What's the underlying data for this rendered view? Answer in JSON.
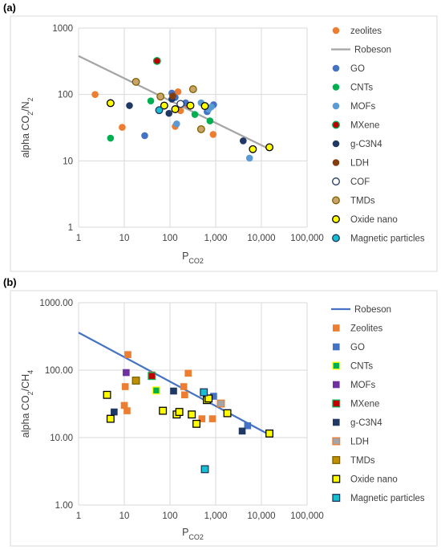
{
  "panels": [
    {
      "label": "(a)"
    },
    {
      "label": "(b)"
    }
  ],
  "chart_data": [
    {
      "type": "scatter",
      "title": "",
      "ylabel": "alpha CO2/N2",
      "xlabel": "PCO2",
      "xscale": "log",
      "yscale": "log",
      "xlim": [
        1,
        100000
      ],
      "ylim": [
        1,
        1000
      ],
      "x_tick_labels": [
        "1",
        "10",
        "100",
        "1,000",
        "10,000",
        "100,000"
      ],
      "y_tick_labels": [
        "1",
        "10",
        "100",
        "1000"
      ],
      "grid": true,
      "legend_position": "right",
      "series": [
        {
          "name": "zeolites",
          "marker": "circle",
          "color": "#ED7D31",
          "edge": "none",
          "points": [
            [
              2.3,
              100
            ],
            [
              9,
              32
            ],
            [
              130,
              33
            ],
            [
              150,
              110
            ],
            [
              170,
              57
            ],
            [
              220,
              70
            ],
            [
              880,
              25
            ]
          ]
        },
        {
          "name": "Robeson",
          "marker": "line",
          "color": "#A5A5A5",
          "points": [
            [
              1,
              380
            ],
            [
              15000,
              15
            ]
          ]
        },
        {
          "name": "GO",
          "marker": "circle",
          "color": "#4472C4",
          "edge": "none",
          "points": [
            [
              28,
              24
            ],
            [
              110,
              105
            ],
            [
              130,
              90
            ],
            [
              220,
              75
            ],
            [
              650,
              55
            ],
            [
              900,
              70
            ]
          ]
        },
        {
          "name": "CNTs",
          "marker": "circle",
          "color": "#00B050",
          "edge": "none",
          "points": [
            [
              5,
              22
            ],
            [
              38,
              80
            ],
            [
              350,
              50
            ],
            [
              750,
              40
            ]
          ]
        },
        {
          "name": "MOFs",
          "marker": "circle",
          "color": "#5B9BD5",
          "edge": "none",
          "points": [
            [
              140,
              36
            ],
            [
              480,
              75
            ],
            [
              700,
              60
            ],
            [
              800,
              65
            ],
            [
              5500,
              11
            ]
          ]
        },
        {
          "name": "MXene",
          "marker": "circle",
          "color": "#C00000",
          "edge": "#00B050",
          "points": [
            [
              52,
              320
            ]
          ]
        },
        {
          "name": "g-C3N4",
          "marker": "circle",
          "color": "#203864",
          "edge": "none",
          "points": [
            [
              13,
              68
            ],
            [
              95,
              52
            ],
            [
              110,
              85
            ],
            [
              4000,
              20
            ]
          ]
        },
        {
          "name": "LDH",
          "marker": "circle",
          "color": "#843C0C",
          "edge": "none",
          "points": [
            [
              115,
              95
            ]
          ]
        },
        {
          "name": "COF",
          "marker": "circle",
          "color": "#FFFFFF",
          "edge": "#203864",
          "points": [
            [
              170,
              72
            ]
          ]
        },
        {
          "name": "TMDs",
          "marker": "circle",
          "color": "#C9A46A",
          "edge": "#7F6000",
          "points": [
            [
              18,
              155
            ],
            [
              62,
              93
            ],
            [
              320,
              120
            ],
            [
              480,
              30
            ]
          ]
        },
        {
          "name": "Oxide nano",
          "marker": "circle",
          "color": "#FFFF00",
          "edge": "#000000",
          "points": [
            [
              5,
              74
            ],
            [
              75,
              68
            ],
            [
              130,
              60
            ],
            [
              280,
              68
            ],
            [
              580,
              67
            ],
            [
              6500,
              15
            ],
            [
              15000,
              16
            ]
          ]
        },
        {
          "name": "Magnetic particles",
          "marker": "circle",
          "color": "#17BECF",
          "edge": "#1F3864",
          "points": [
            [
              58,
              58
            ]
          ]
        }
      ]
    },
    {
      "type": "scatter",
      "title": "",
      "ylabel": "alpha CO2/CH4",
      "xlabel": "PCO2",
      "xscale": "log",
      "yscale": "log",
      "xlim": [
        1,
        100000
      ],
      "ylim": [
        1,
        1000
      ],
      "x_tick_labels": [
        "1",
        "10",
        "100",
        "1,000",
        "10,000",
        "100,000"
      ],
      "y_tick_labels": [
        "1.00",
        "10.00",
        "100.00",
        "1000.00"
      ],
      "grid": true,
      "legend_position": "right",
      "series": [
        {
          "name": "Robeson",
          "marker": "line",
          "color": "#4472C4",
          "points": [
            [
              1,
              360
            ],
            [
              15000,
              11
            ]
          ]
        },
        {
          "name": "Zeolites",
          "marker": "square",
          "color": "#ED7D31",
          "edge": "none",
          "points": [
            [
              10,
              30
            ],
            [
              10.5,
              57
            ],
            [
              11.5,
              25
            ],
            [
              12,
              170
            ],
            [
              40,
              85
            ],
            [
              200,
              57
            ],
            [
              210,
              43
            ],
            [
              250,
              90
            ],
            [
              500,
              19
            ],
            [
              850,
              19
            ]
          ]
        },
        {
          "name": "GO",
          "marker": "square",
          "color": "#4472C4",
          "edge": "none",
          "points": [
            [
              900,
              41
            ],
            [
              5000,
              15
            ]
          ]
        },
        {
          "name": "CNTs",
          "marker": "square",
          "color": "#00B050",
          "edge": "#FFFF00",
          "points": [
            [
              50,
              50
            ]
          ]
        },
        {
          "name": "MOFs",
          "marker": "square",
          "color": "#7030A0",
          "edge": "none",
          "points": [
            [
              11,
              92
            ]
          ]
        },
        {
          "name": "MXene",
          "marker": "square",
          "color": "#C00000",
          "edge": "#00B050",
          "points": [
            [
              40,
              82
            ]
          ]
        },
        {
          "name": "g-C3N4",
          "marker": "square",
          "color": "#203864",
          "edge": "none",
          "points": [
            [
              6,
              24
            ],
            [
              120,
              49
            ],
            [
              3800,
              12.5
            ]
          ]
        },
        {
          "name": "LDH",
          "marker": "square",
          "color": "#A5A5A5",
          "edge": "#ED7D31",
          "points": [
            [
              1300,
              32
            ]
          ]
        },
        {
          "name": "TMDs",
          "marker": "square",
          "color": "#BF9000",
          "edge": "#7F6000",
          "points": [
            [
              18,
              70
            ]
          ]
        },
        {
          "name": "Oxide nano",
          "marker": "square",
          "color": "#FFFF00",
          "edge": "#000000",
          "points": [
            [
              4.2,
              43
            ],
            [
              5,
              19
            ],
            [
              70,
              25
            ],
            [
              140,
              22
            ],
            [
              160,
              24
            ],
            [
              300,
              22
            ],
            [
              380,
              16
            ],
            [
              640,
              36
            ],
            [
              700,
              38
            ],
            [
              1800,
              23
            ],
            [
              15000,
              11.5
            ]
          ]
        },
        {
          "name": "Magnetic particles",
          "marker": "square",
          "color": "#17BECF",
          "edge": "#1F3864",
          "points": [
            [
              550,
              47
            ],
            [
              580,
              3.4
            ]
          ]
        }
      ]
    }
  ]
}
